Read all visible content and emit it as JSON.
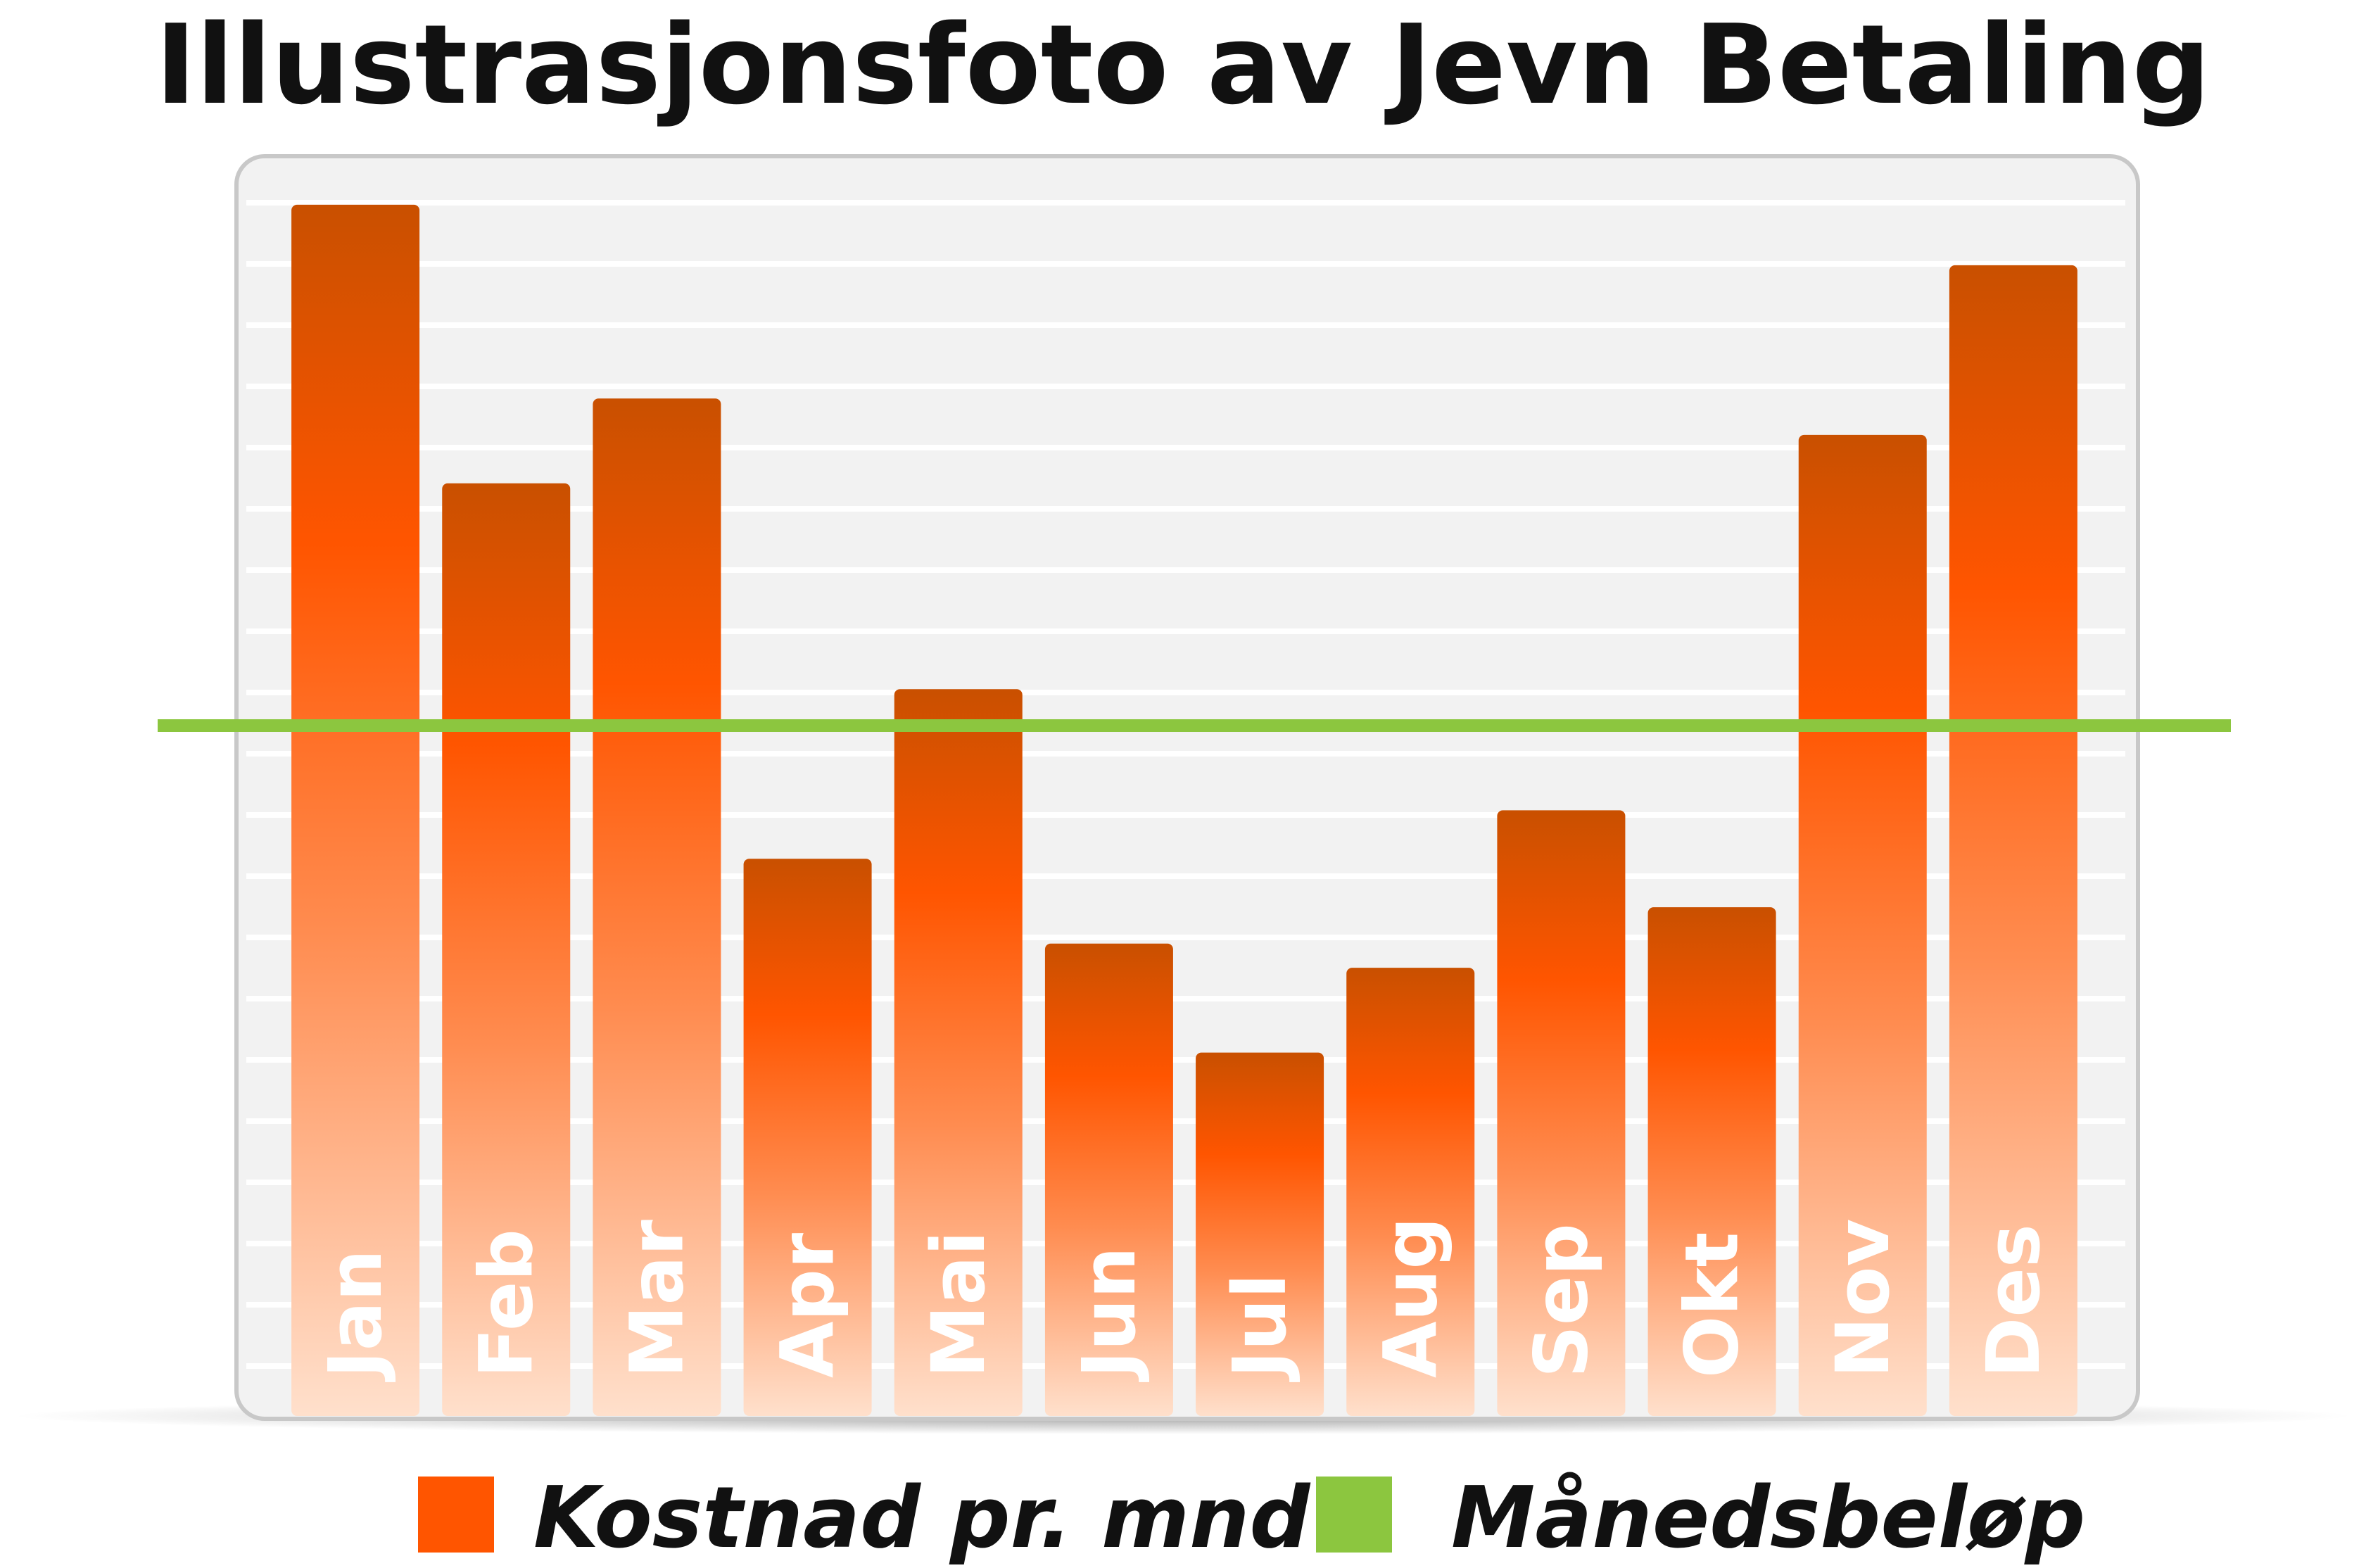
{
  "chart_data": {
    "type": "bar",
    "title": "Illustrasjonsfoto av Jevn Betaling",
    "categories": [
      "Jan",
      "Feb",
      "Mar",
      "Apr",
      "Mai",
      "Jun",
      "Jul",
      "Aug",
      "Sep",
      "Okt",
      "Nov",
      "Des"
    ],
    "series": [
      {
        "name": "Kostnad pr. mnd",
        "values": [
          100,
          77,
          84,
          46,
          60,
          39,
          30,
          37,
          50,
          42,
          81,
          95
        ]
      }
    ],
    "reference_line": {
      "name": "Månedsbeløp",
      "value": 57
    },
    "ylim": [
      0,
      104
    ],
    "xlabel": "",
    "ylabel": "",
    "grid": true,
    "legend": "bottom",
    "colors": {
      "bar": "#ff5500",
      "bar_dark": "#c95000",
      "bar_light": "#ffd9c2",
      "reference_line": "#8cc63f",
      "panel": "#f2f2f2",
      "panel_border": "#c8c8c8",
      "grid": "#ffffff"
    }
  }
}
